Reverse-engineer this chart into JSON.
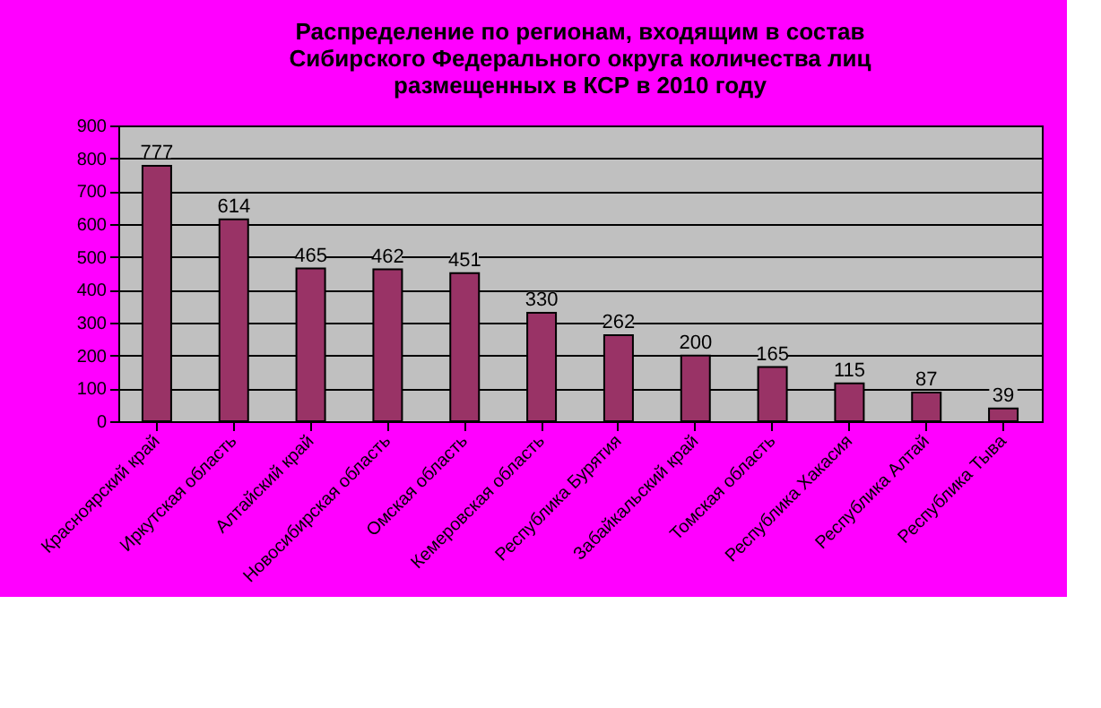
{
  "chart_data": {
    "type": "bar",
    "title": "Распределение по регионам, входящим в состав\nСибирского Федерального округа количества лиц\nразмещенных в КСР в 2010 году",
    "categories": [
      "Красноярский край",
      "Иркутская область",
      "Алтайский край",
      "Новосибирская область",
      "Омская область",
      "Кемеровская область",
      "Республика Бурятия",
      "Забайкальский край",
      "Томская область",
      "Республика Хакасия",
      "Республика Алтай",
      "Республика Тыва"
    ],
    "values": [
      777,
      614,
      465,
      462,
      451,
      330,
      262,
      200,
      165,
      115,
      87,
      39
    ],
    "color": "#993366",
    "ylim": [
      0,
      900
    ],
    "yticks": [
      0,
      100,
      200,
      300,
      400,
      500,
      600,
      700,
      800,
      900
    ],
    "grid": "y",
    "data_labels": true
  }
}
